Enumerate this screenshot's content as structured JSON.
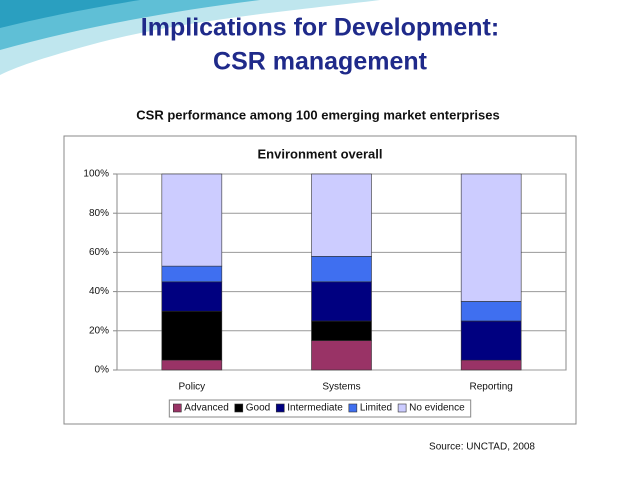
{
  "slide": {
    "title": [
      "Implications for Development:",
      "CSR management"
    ],
    "heading": "CSR performance among 100 emerging market enterprises",
    "source": "Source: UNCTAD, 2008"
  },
  "chart_data": {
    "type": "stacked_bar",
    "title": "Environment overall",
    "categories": [
      "Policy",
      "Systems",
      "Reporting"
    ],
    "series": [
      {
        "name": "Advanced",
        "color": "#993366",
        "values": [
          5,
          15,
          5
        ]
      },
      {
        "name": "Good",
        "color": "#000000",
        "values": [
          25,
          10,
          0
        ]
      },
      {
        "name": "Intermediate",
        "color": "#000080",
        "values": [
          15,
          20,
          20
        ]
      },
      {
        "name": "Limited",
        "color": "#3f6ff0",
        "values": [
          8,
          13,
          10
        ]
      },
      {
        "name": "No evidence",
        "color": "#ccccff",
        "values": [
          47,
          42,
          65
        ]
      }
    ],
    "ylim": [
      0,
      100
    ],
    "yticks": [
      {
        "value": 0,
        "label": "0%"
      },
      {
        "value": 20,
        "label": "20%"
      },
      {
        "value": 40,
        "label": "40%"
      },
      {
        "value": 60,
        "label": "60%"
      },
      {
        "value": 80,
        "label": "80%"
      },
      {
        "value": 100,
        "label": "100%"
      }
    ],
    "grid": true,
    "legend": "bottom"
  }
}
